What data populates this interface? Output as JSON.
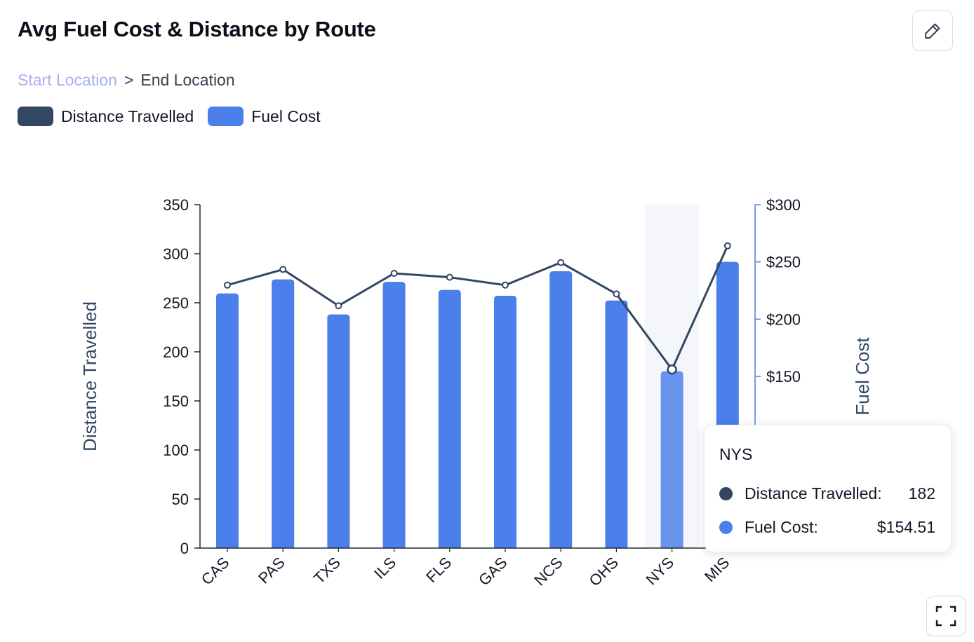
{
  "title": "Avg Fuel Cost & Distance by Route",
  "breadcrumb": {
    "start": "Start Location",
    "separator": ">",
    "end": "End Location"
  },
  "legend": [
    {
      "label": "Distance Travelled",
      "color": "#334762"
    },
    {
      "label": "Fuel Cost",
      "color": "#4b7fea"
    }
  ],
  "icons": {
    "edit": "pencil-icon",
    "expand": "expand-icon"
  },
  "chart_data": {
    "type": "bar",
    "categories": [
      "CAS",
      "PAS",
      "TXS",
      "ILS",
      "FLS",
      "GAS",
      "NCS",
      "OHS",
      "NYS",
      "MIS"
    ],
    "series": [
      {
        "name": "Fuel Cost",
        "type": "bar",
        "axis": "right",
        "color": "#4b7fea",
        "values": [
          222.5,
          234.7,
          204.1,
          232.6,
          225.5,
          220.4,
          241.8,
          216.3,
          154.51,
          250.0
        ]
      },
      {
        "name": "Distance Travelled",
        "type": "line",
        "axis": "left",
        "color": "#334762",
        "values": [
          268,
          284,
          247,
          280,
          276,
          268,
          291,
          259,
          182,
          308
        ]
      }
    ],
    "ylabel_left": "Distance Travelled",
    "ylabel_right": "Fuel Cost",
    "ylim_left": [
      0,
      350
    ],
    "yticks_left": [
      "0",
      "50",
      "100",
      "150",
      "200",
      "250",
      "300",
      "350"
    ],
    "ylim_right": [
      0,
      300
    ],
    "yticks_right": [
      "$150",
      "$200",
      "$250",
      "$300"
    ],
    "highlighted_category": "NYS",
    "grid": false
  },
  "tooltip": {
    "title": "NYS",
    "rows": [
      {
        "label": "Distance Travelled:",
        "value": "182",
        "color": "#334762"
      },
      {
        "label": "Fuel Cost:",
        "value": "$154.51",
        "color": "#4b7fea"
      }
    ]
  }
}
